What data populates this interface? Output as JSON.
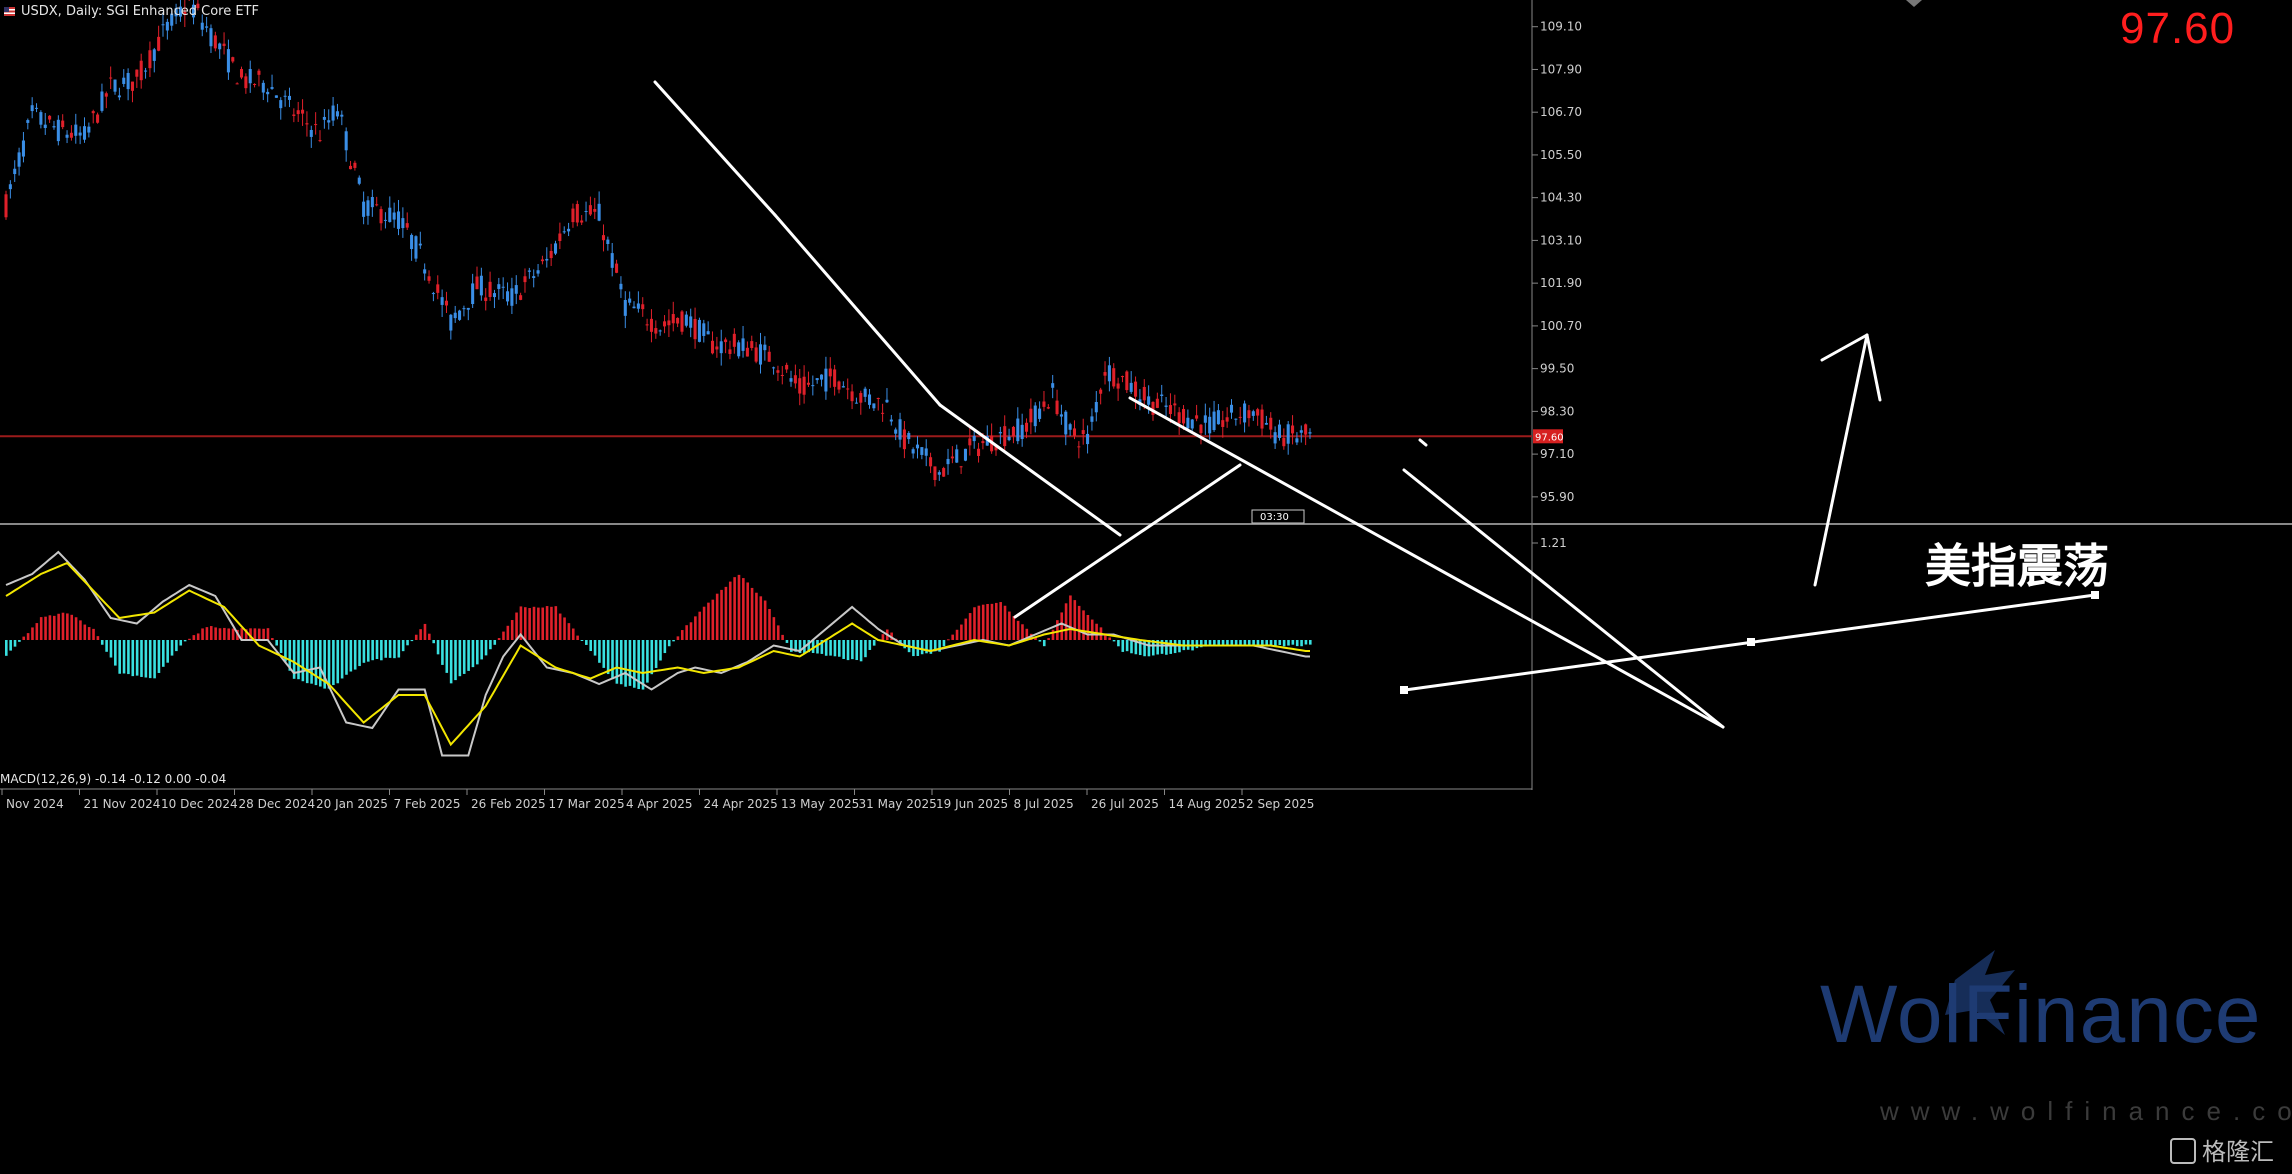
{
  "header": {
    "symbol_line": "USDX, Daily:  SGI Enhanced Core ETF",
    "big_price": "97.60"
  },
  "macd_label": "MACD(12,26,9) -0.14 -0.12 0.00 -0.04",
  "annotation": "美指震荡",
  "watermark": {
    "brand": "WolFinance",
    "url": "www.wolfinance.com",
    "logo": "格隆汇"
  },
  "colors": {
    "bull": "#e0202a",
    "bear": "#3a8ee6",
    "hist_pos": "#e0202a",
    "hist_neg": "#39e0e0",
    "signal": "#f2e600",
    "macd": "#c8c8c8",
    "drawn_lines": "#ffffff",
    "price_line": "#9b1b1b"
  },
  "chart_data": [
    {
      "type": "candlestick",
      "title": "USDX, Daily",
      "y_ticks": [
        "109.10",
        "107.90",
        "106.70",
        "105.50",
        "104.30",
        "103.10",
        "101.90",
        "100.70",
        "99.50",
        "98.30",
        "97.10",
        "95.90"
      ],
      "ylim": [
        95.25,
        109.85
      ],
      "x_labels": [
        "Nov 2024",
        "21 Nov 2024",
        "10 Dec 2024",
        "28 Dec 2024",
        "20 Jan 2025",
        "7 Feb 2025",
        "26 Feb 2025",
        "17 Mar 2025",
        "4 Apr 2025",
        "24 Apr 2025",
        "13 May 2025",
        "31 May 2025",
        "19 Jun 2025",
        "8 Jul 2025",
        "26 Jul 2025",
        "14 Aug 2025",
        "2 Sep 2025"
      ],
      "current_price": 97.6,
      "current_price_tag": "97.60",
      "time_tag": "03:30",
      "close_path": [
        [
          0,
          104.1
        ],
        [
          6,
          106.6
        ],
        [
          12,
          106.2
        ],
        [
          18,
          106.0
        ],
        [
          24,
          107.4
        ],
        [
          30,
          107.6
        ],
        [
          36,
          108.9
        ],
        [
          42,
          109.8
        ],
        [
          48,
          108.7
        ],
        [
          54,
          107.6
        ],
        [
          60,
          107.5
        ],
        [
          66,
          106.7
        ],
        [
          72,
          106.1
        ],
        [
          76,
          106.8
        ],
        [
          82,
          104.1
        ],
        [
          90,
          103.7
        ],
        [
          96,
          102.5
        ],
        [
          102,
          100.8
        ],
        [
          108,
          101.8
        ],
        [
          116,
          101.5
        ],
        [
          124,
          102.5
        ],
        [
          130,
          103.9
        ],
        [
          136,
          103.8
        ],
        [
          142,
          101.3
        ],
        [
          150,
          100.7
        ],
        [
          156,
          100.9
        ],
        [
          162,
          100.2
        ],
        [
          170,
          100.1
        ],
        [
          176,
          99.8
        ],
        [
          182,
          98.9
        ],
        [
          190,
          99.3
        ],
        [
          196,
          98.7
        ],
        [
          202,
          98.5
        ],
        [
          206,
          97.5
        ],
        [
          214,
          96.6
        ],
        [
          222,
          97.3
        ],
        [
          228,
          97.6
        ],
        [
          234,
          97.9
        ],
        [
          240,
          98.8
        ],
        [
          244,
          97.7
        ],
        [
          248,
          97.5
        ],
        [
          252,
          99.5
        ],
        [
          256,
          99.2
        ],
        [
          262,
          98.6
        ],
        [
          270,
          98.2
        ],
        [
          276,
          97.9
        ],
        [
          282,
          98.2
        ],
        [
          286,
          98.3
        ],
        [
          292,
          97.6
        ],
        [
          298,
          97.6
        ]
      ]
    },
    {
      "type": "macd",
      "label": "MACD(12,26,9) -0.14 -0.12 0.00 -0.04",
      "y_tick": "1.21",
      "histogram": [
        [
          0,
          -0.3
        ],
        [
          8,
          0.4
        ],
        [
          14,
          0.5
        ],
        [
          20,
          0.2
        ],
        [
          26,
          -0.6
        ],
        [
          34,
          -0.7
        ],
        [
          40,
          -0.1
        ],
        [
          46,
          0.25
        ],
        [
          52,
          0.2
        ],
        [
          60,
          0.2
        ],
        [
          66,
          -0.7
        ],
        [
          74,
          -0.9
        ],
        [
          82,
          -0.4
        ],
        [
          90,
          -0.3
        ],
        [
          96,
          0.3
        ],
        [
          102,
          -0.8
        ],
        [
          110,
          -0.3
        ],
        [
          118,
          0.6
        ],
        [
          126,
          0.6
        ],
        [
          132,
          0.0
        ],
        [
          140,
          -0.8
        ],
        [
          146,
          -0.9
        ],
        [
          152,
          -0.1
        ],
        [
          160,
          0.6
        ],
        [
          168,
          1.2
        ],
        [
          174,
          0.7
        ],
        [
          180,
          -0.2
        ],
        [
          190,
          -0.3
        ],
        [
          196,
          -0.4
        ],
        [
          202,
          0.2
        ],
        [
          208,
          -0.3
        ],
        [
          214,
          -0.2
        ],
        [
          222,
          0.6
        ],
        [
          228,
          0.7
        ],
        [
          234,
          0.2
        ],
        [
          238,
          -0.1
        ],
        [
          244,
          0.8
        ],
        [
          250,
          0.3
        ],
        [
          256,
          -0.2
        ],
        [
          262,
          -0.3
        ],
        [
          270,
          -0.2
        ],
        [
          278,
          -0.1
        ],
        [
          286,
          -0.1
        ],
        [
          298,
          -0.1
        ]
      ],
      "macd_line": [
        [
          0,
          1.0
        ],
        [
          6,
          1.2
        ],
        [
          12,
          1.6
        ],
        [
          18,
          1.1
        ],
        [
          24,
          0.4
        ],
        [
          30,
          0.3
        ],
        [
          36,
          0.7
        ],
        [
          42,
          1.0
        ],
        [
          48,
          0.8
        ],
        [
          54,
          0.0
        ],
        [
          60,
          0.0
        ],
        [
          66,
          -0.6
        ],
        [
          72,
          -0.5
        ],
        [
          78,
          -1.5
        ],
        [
          84,
          -1.6
        ],
        [
          90,
          -0.9
        ],
        [
          96,
          -0.9
        ],
        [
          100,
          -2.1
        ],
        [
          106,
          -2.1
        ],
        [
          110,
          -1.0
        ],
        [
          114,
          -0.3
        ],
        [
          118,
          0.1
        ],
        [
          124,
          -0.5
        ],
        [
          130,
          -0.6
        ],
        [
          136,
          -0.8
        ],
        [
          142,
          -0.6
        ],
        [
          148,
          -0.9
        ],
        [
          154,
          -0.6
        ],
        [
          158,
          -0.5
        ],
        [
          164,
          -0.6
        ],
        [
          170,
          -0.4
        ],
        [
          176,
          -0.1
        ],
        [
          182,
          -0.2
        ],
        [
          188,
          0.2
        ],
        [
          194,
          0.6
        ],
        [
          200,
          0.2
        ],
        [
          206,
          -0.1
        ],
        [
          212,
          -0.2
        ],
        [
          218,
          -0.1
        ],
        [
          224,
          0.0
        ],
        [
          230,
          -0.1
        ],
        [
          236,
          0.1
        ],
        [
          242,
          0.3
        ],
        [
          248,
          0.1
        ],
        [
          254,
          0.1
        ],
        [
          262,
          -0.1
        ],
        [
          270,
          -0.1
        ],
        [
          278,
          -0.1
        ],
        [
          286,
          -0.1
        ],
        [
          292,
          -0.2
        ],
        [
          298,
          -0.3
        ]
      ],
      "signal_line": [
        [
          0,
          0.8
        ],
        [
          8,
          1.2
        ],
        [
          14,
          1.4
        ],
        [
          20,
          0.9
        ],
        [
          26,
          0.4
        ],
        [
          34,
          0.5
        ],
        [
          42,
          0.9
        ],
        [
          50,
          0.6
        ],
        [
          58,
          -0.1
        ],
        [
          66,
          -0.4
        ],
        [
          74,
          -0.8
        ],
        [
          82,
          -1.5
        ],
        [
          90,
          -1.0
        ],
        [
          96,
          -1.0
        ],
        [
          102,
          -1.9
        ],
        [
          110,
          -1.2
        ],
        [
          118,
          -0.1
        ],
        [
          126,
          -0.5
        ],
        [
          134,
          -0.7
        ],
        [
          140,
          -0.5
        ],
        [
          146,
          -0.6
        ],
        [
          154,
          -0.5
        ],
        [
          160,
          -0.6
        ],
        [
          168,
          -0.5
        ],
        [
          176,
          -0.2
        ],
        [
          182,
          -0.3
        ],
        [
          188,
          0.0
        ],
        [
          194,
          0.3
        ],
        [
          200,
          0.0
        ],
        [
          206,
          -0.1
        ],
        [
          212,
          -0.2
        ],
        [
          222,
          0.0
        ],
        [
          230,
          -0.1
        ],
        [
          238,
          0.1
        ],
        [
          244,
          0.2
        ],
        [
          252,
          0.1
        ],
        [
          260,
          0.0
        ],
        [
          270,
          -0.1
        ],
        [
          280,
          -0.1
        ],
        [
          290,
          -0.1
        ],
        [
          298,
          -0.2
        ]
      ]
    }
  ]
}
